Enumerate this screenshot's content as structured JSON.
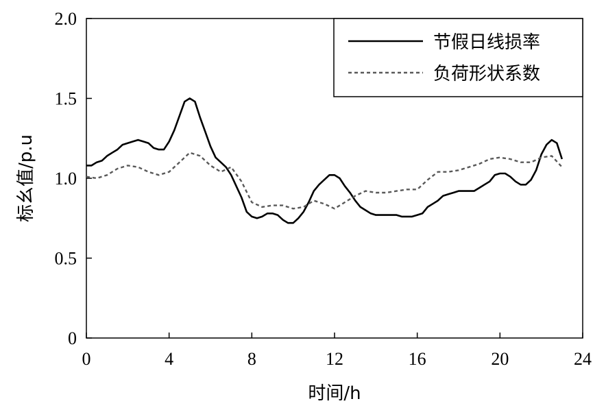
{
  "chart_data": {
    "type": "line",
    "title": "",
    "xlabel": "时间/h",
    "ylabel": "标幺值/p.u",
    "xlim": [
      0,
      24
    ],
    "ylim": [
      0,
      2.0
    ],
    "xticks": [
      0,
      4,
      8,
      12,
      16,
      20,
      24
    ],
    "xtick_labels": [
      "0",
      "4",
      "8",
      "12",
      "16",
      "20",
      "24"
    ],
    "yticks": [
      0,
      0.5,
      1.0,
      1.5,
      2.0
    ],
    "ytick_labels": [
      "0",
      "0.5",
      "1.0",
      "1.5",
      "2.0"
    ],
    "grid": false,
    "legend_position": "top-right",
    "series": [
      {
        "name": "节假日线损率",
        "style": "solid",
        "color": "#000000",
        "x": [
          0,
          0.25,
          0.5,
          0.75,
          1,
          1.25,
          1.5,
          1.75,
          2,
          2.25,
          2.5,
          2.75,
          3,
          3.25,
          3.5,
          3.75,
          4,
          4.25,
          4.5,
          4.75,
          5,
          5.25,
          5.5,
          5.75,
          6,
          6.25,
          6.5,
          6.75,
          7,
          7.25,
          7.5,
          7.75,
          8,
          8.25,
          8.5,
          8.75,
          9,
          9.25,
          9.5,
          9.75,
          10,
          10.25,
          10.5,
          10.75,
          11,
          11.25,
          11.5,
          11.75,
          12,
          12.25,
          12.5,
          12.75,
          13,
          13.25,
          13.5,
          13.75,
          14,
          14.25,
          14.5,
          14.75,
          15,
          15.25,
          15.5,
          15.75,
          16,
          16.25,
          16.5,
          16.75,
          17,
          17.25,
          17.5,
          17.75,
          18,
          18.25,
          18.5,
          18.75,
          19,
          19.25,
          19.5,
          19.75,
          20,
          20.25,
          20.5,
          20.75,
          21,
          21.25,
          21.5,
          21.75,
          22,
          22.25,
          22.5,
          22.75,
          23
        ],
        "values": [
          1.08,
          1.08,
          1.1,
          1.11,
          1.14,
          1.16,
          1.18,
          1.21,
          1.22,
          1.23,
          1.24,
          1.23,
          1.22,
          1.19,
          1.18,
          1.18,
          1.23,
          1.3,
          1.39,
          1.48,
          1.5,
          1.48,
          1.38,
          1.29,
          1.2,
          1.13,
          1.1,
          1.07,
          1.02,
          0.95,
          0.88,
          0.79,
          0.76,
          0.75,
          0.76,
          0.78,
          0.78,
          0.77,
          0.74,
          0.72,
          0.72,
          0.75,
          0.79,
          0.85,
          0.92,
          0.96,
          0.99,
          1.02,
          1.02,
          1.0,
          0.95,
          0.91,
          0.86,
          0.82,
          0.8,
          0.78,
          0.77,
          0.77,
          0.77,
          0.77,
          0.77,
          0.76,
          0.76,
          0.76,
          0.77,
          0.78,
          0.82,
          0.84,
          0.86,
          0.89,
          0.9,
          0.91,
          0.92,
          0.92,
          0.92,
          0.92,
          0.94,
          0.96,
          0.98,
          1.02,
          1.03,
          1.03,
          1.01,
          0.98,
          0.96,
          0.96,
          0.99,
          1.05,
          1.15,
          1.21,
          1.24,
          1.22,
          1.12
        ]
      },
      {
        "name": "负荷形状系数",
        "style": "dashed",
        "color": "#595959",
        "x": [
          0,
          0.5,
          1,
          1.5,
          2,
          2.5,
          3,
          3.5,
          4,
          4.5,
          5,
          5.5,
          6,
          6.5,
          7,
          7.5,
          8,
          8.5,
          9,
          9.5,
          10,
          10.5,
          11,
          11.5,
          12,
          12.5,
          13,
          13.5,
          14,
          14.5,
          15,
          15.5,
          16,
          16.5,
          17,
          17.5,
          18,
          18.5,
          19,
          19.5,
          20,
          20.5,
          21,
          21.5,
          22,
          22.5,
          23
        ],
        "values": [
          1.01,
          1.0,
          1.02,
          1.06,
          1.08,
          1.07,
          1.04,
          1.02,
          1.04,
          1.1,
          1.16,
          1.14,
          1.08,
          1.04,
          1.07,
          0.98,
          0.85,
          0.82,
          0.83,
          0.83,
          0.81,
          0.82,
          0.86,
          0.84,
          0.81,
          0.85,
          0.89,
          0.92,
          0.91,
          0.91,
          0.92,
          0.93,
          0.93,
          0.99,
          1.04,
          1.04,
          1.05,
          1.07,
          1.09,
          1.12,
          1.13,
          1.12,
          1.1,
          1.1,
          1.13,
          1.14,
          1.07
        ]
      }
    ]
  }
}
